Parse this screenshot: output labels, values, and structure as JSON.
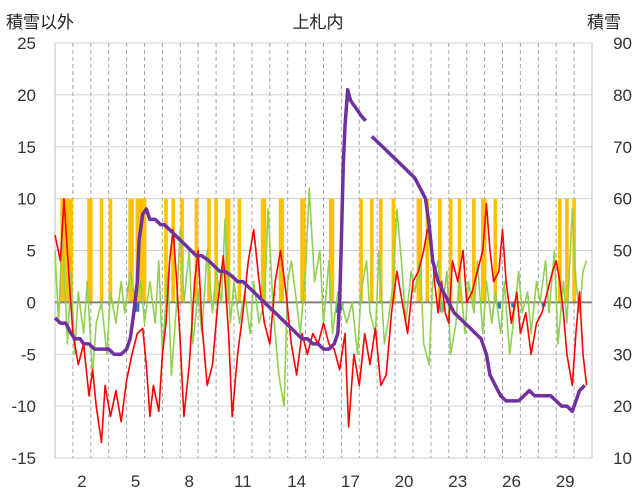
{
  "chart_data": {
    "type": "line",
    "title": "上札内",
    "y_left_label": "積雪以外",
    "y_right_label": "積雪",
    "y_left_ticks": [
      "25",
      "20",
      "15",
      "10",
      "5",
      "0",
      "-5",
      "-10",
      "-15"
    ],
    "y_right_ticks": [
      "90",
      "80",
      "70",
      "60",
      "50",
      "40",
      "30",
      "20",
      "10"
    ],
    "x_tick_labels": [
      "2",
      "5",
      "8",
      "11",
      "14",
      "17",
      "20",
      "23",
      "26",
      "29"
    ],
    "x_tick_days": [
      2,
      5,
      8,
      11,
      14,
      17,
      20,
      23,
      26,
      29
    ],
    "ylim_left": [
      -15,
      25
    ],
    "ylim_right": [
      10,
      90
    ],
    "xlim": [
      1,
      31
    ],
    "grid": {
      "x": "dashed-daily",
      "y": "solid"
    },
    "legend": "none",
    "colors": {
      "snowfall_bars": "#ffc000",
      "precip_bars": "#2e75b6",
      "temperature": "#ff0000",
      "series_green": "#92d050",
      "snow_depth": "#7030a0"
    },
    "snowfall_bars": [
      [
        1.3,
        1.6
      ],
      [
        1.6,
        2.0
      ],
      [
        2.8,
        3.1
      ],
      [
        3.5,
        3.7
      ],
      [
        4.0,
        4.2
      ],
      [
        5.1,
        5.4
      ],
      [
        5.5,
        6.1
      ],
      [
        7.1,
        7.3
      ],
      [
        7.5,
        7.7
      ],
      [
        8.0,
        8.2
      ],
      [
        8.8,
        9.0
      ],
      [
        9.5,
        9.7
      ],
      [
        9.9,
        10.1
      ],
      [
        10.5,
        10.8
      ],
      [
        11.2,
        11.4
      ],
      [
        12.5,
        12.8
      ],
      [
        13.5,
        13.8
      ],
      [
        14.7,
        15.0
      ],
      [
        16.3,
        16.6
      ],
      [
        18.0,
        18.2
      ],
      [
        18.6,
        18.8
      ],
      [
        19.1,
        19.3
      ],
      [
        19.8,
        20.0
      ],
      [
        21.2,
        21.5
      ],
      [
        21.7,
        21.9
      ],
      [
        22.4,
        22.6
      ],
      [
        23.0,
        23.2
      ],
      [
        23.5,
        23.7
      ],
      [
        24.3,
        24.5
      ],
      [
        24.8,
        25.1
      ],
      [
        25.5,
        25.7
      ],
      [
        29.1,
        29.3
      ],
      [
        29.5,
        29.7
      ],
      [
        29.9,
        30.1
      ]
    ],
    "precip_bars": [
      [
        5.6,
        -0.9
      ],
      [
        16.8,
        -1.0
      ],
      [
        17.0,
        -0.7
      ],
      [
        22.6,
        -0.9
      ],
      [
        25.8,
        -0.6
      ],
      [
        26.6,
        -0.5
      ],
      [
        28.3,
        -0.4
      ]
    ],
    "temperature": [
      [
        1.0,
        6.5
      ],
      [
        1.3,
        4.0
      ],
      [
        1.5,
        10.0
      ],
      [
        1.8,
        2.0
      ],
      [
        2.0,
        -3.0
      ],
      [
        2.3,
        -6.0
      ],
      [
        2.6,
        -4.0
      ],
      [
        2.9,
        -9.0
      ],
      [
        3.1,
        -6.5
      ],
      [
        3.3,
        -10.0
      ],
      [
        3.6,
        -13.5
      ],
      [
        3.8,
        -8.0
      ],
      [
        4.1,
        -11.0
      ],
      [
        4.4,
        -8.5
      ],
      [
        4.7,
        -11.5
      ],
      [
        5.0,
        -7.5
      ],
      [
        5.3,
        -5.0
      ],
      [
        5.6,
        -3.0
      ],
      [
        5.9,
        -2.5
      ],
      [
        6.1,
        -6.0
      ],
      [
        6.3,
        -11.0
      ],
      [
        6.5,
        -8.0
      ],
      [
        6.8,
        -10.5
      ],
      [
        7.0,
        -5.0
      ],
      [
        7.2,
        -2.0
      ],
      [
        7.4,
        4.0
      ],
      [
        7.6,
        7.0
      ],
      [
        7.8,
        2.0
      ],
      [
        8.0,
        -4.0
      ],
      [
        8.2,
        -11.0
      ],
      [
        8.5,
        -6.0
      ],
      [
        8.8,
        2.0
      ],
      [
        9.0,
        5.0
      ],
      [
        9.2,
        -2.0
      ],
      [
        9.5,
        -8.0
      ],
      [
        9.8,
        -6.0
      ],
      [
        10.1,
        0.0
      ],
      [
        10.4,
        4.5
      ],
      [
        10.7,
        -3.0
      ],
      [
        10.9,
        -11.0
      ],
      [
        11.2,
        -5.0
      ],
      [
        11.5,
        -1.0
      ],
      [
        11.8,
        4.0
      ],
      [
        12.1,
        7.0
      ],
      [
        12.4,
        2.0
      ],
      [
        12.7,
        -2.0
      ],
      [
        13.0,
        -4.0
      ],
      [
        13.3,
        2.0
      ],
      [
        13.6,
        5.0
      ],
      [
        13.9,
        1.0
      ],
      [
        14.2,
        -4.0
      ],
      [
        14.5,
        -7.0
      ],
      [
        14.8,
        -3.0
      ],
      [
        15.1,
        -5.0
      ],
      [
        15.4,
        -3.0
      ],
      [
        15.7,
        -4.0
      ],
      [
        16.0,
        -2.0
      ],
      [
        16.3,
        -4.0
      ],
      [
        16.6,
        -4.5
      ],
      [
        16.9,
        -6.5
      ],
      [
        17.2,
        -3.0
      ],
      [
        17.4,
        -12.0
      ],
      [
        17.7,
        -5.0
      ],
      [
        18.0,
        -8.0
      ],
      [
        18.3,
        -3.0
      ],
      [
        18.6,
        -6.0
      ],
      [
        18.9,
        -2.5
      ],
      [
        19.2,
        -8.0
      ],
      [
        19.5,
        -7.0
      ],
      [
        19.8,
        -1.0
      ],
      [
        20.1,
        3.0
      ],
      [
        20.4,
        0.0
      ],
      [
        20.7,
        -3.0
      ],
      [
        21.0,
        2.0
      ],
      [
        21.3,
        3.0
      ],
      [
        21.6,
        5.0
      ],
      [
        21.8,
        7.0
      ],
      [
        22.0,
        6.5
      ],
      [
        22.2,
        2.0
      ],
      [
        22.4,
        -1.0
      ],
      [
        22.6,
        2.0
      ],
      [
        22.8,
        -1.0
      ],
      [
        23.0,
        -2.0
      ],
      [
        23.2,
        4.0
      ],
      [
        23.5,
        2.0
      ],
      [
        23.8,
        5.0
      ],
      [
        24.0,
        0.0
      ],
      [
        24.3,
        1.0
      ],
      [
        24.6,
        3.0
      ],
      [
        24.9,
        5.0
      ],
      [
        25.1,
        9.5
      ],
      [
        25.3,
        5.0
      ],
      [
        25.5,
        2.0
      ],
      [
        25.8,
        3.0
      ],
      [
        26.0,
        7.0
      ],
      [
        26.2,
        2.0
      ],
      [
        26.5,
        -2.0
      ],
      [
        26.8,
        1.0
      ],
      [
        27.0,
        -3.0
      ],
      [
        27.3,
        -1.0
      ],
      [
        27.6,
        -5.0
      ],
      [
        27.9,
        -2.0
      ],
      [
        28.2,
        -1.0
      ],
      [
        28.5,
        1.0
      ],
      [
        28.8,
        3.0
      ],
      [
        29.0,
        4.0
      ],
      [
        29.2,
        2.0
      ],
      [
        29.4,
        -1.0
      ],
      [
        29.6,
        -5.0
      ],
      [
        29.9,
        -8.0
      ],
      [
        30.1,
        -3.0
      ],
      [
        30.3,
        1.0
      ],
      [
        30.5,
        -5.0
      ],
      [
        30.7,
        -8.0
      ]
    ],
    "series_green": [
      [
        1.0,
        5.0
      ],
      [
        1.2,
        -2.0
      ],
      [
        1.4,
        7.0
      ],
      [
        1.7,
        -4.0
      ],
      [
        1.9,
        3.0
      ],
      [
        2.1,
        -5.0
      ],
      [
        2.3,
        1.0
      ],
      [
        2.6,
        -3.0
      ],
      [
        2.8,
        2.0
      ],
      [
        3.1,
        -7.0
      ],
      [
        3.3,
        -2.0
      ],
      [
        3.6,
        0.0
      ],
      [
        3.9,
        -5.0
      ],
      [
        4.1,
        1.0
      ],
      [
        4.4,
        -2.0
      ],
      [
        4.7,
        2.0
      ],
      [
        4.9,
        -1.0
      ],
      [
        5.2,
        3.0
      ],
      [
        5.5,
        0.0
      ],
      [
        5.8,
        2.0
      ],
      [
        6.0,
        -2.0
      ],
      [
        6.3,
        2.0
      ],
      [
        6.6,
        -2.0
      ],
      [
        6.8,
        4.0
      ],
      [
        7.0,
        -5.0
      ],
      [
        7.3,
        3.0
      ],
      [
        7.5,
        -7.0
      ],
      [
        7.8,
        0.0
      ],
      [
        8.0,
        7.0
      ],
      [
        8.2,
        0.0
      ],
      [
        8.5,
        5.0
      ],
      [
        8.7,
        -4.0
      ],
      [
        9.0,
        1.0
      ],
      [
        9.2,
        -3.0
      ],
      [
        9.5,
        5.0
      ],
      [
        9.8,
        -1.0
      ],
      [
        10.0,
        3.0
      ],
      [
        10.3,
        0.0
      ],
      [
        10.5,
        8.0
      ],
      [
        10.8,
        -2.0
      ],
      [
        11.0,
        2.0
      ],
      [
        11.3,
        -2.0
      ],
      [
        11.6,
        1.0
      ],
      [
        11.9,
        -3.0
      ],
      [
        12.1,
        2.0
      ],
      [
        12.4,
        -2.0
      ],
      [
        12.7,
        0.0
      ],
      [
        12.9,
        9.0
      ],
      [
        13.2,
        -1.0
      ],
      [
        13.5,
        -7.0
      ],
      [
        13.8,
        -10.0
      ],
      [
        14.0,
        2.0
      ],
      [
        14.2,
        4.0
      ],
      [
        14.5,
        0.0
      ],
      [
        14.7,
        -3.0
      ],
      [
        15.0,
        3.0
      ],
      [
        15.2,
        11.0
      ],
      [
        15.5,
        2.0
      ],
      [
        15.8,
        5.0
      ],
      [
        16.0,
        -2.0
      ],
      [
        16.3,
        4.0
      ],
      [
        16.5,
        -3.0
      ],
      [
        16.8,
        1.0
      ],
      [
        17.0,
        0.0
      ],
      [
        17.3,
        -2.0
      ],
      [
        17.6,
        0.0
      ],
      [
        17.9,
        -5.0
      ],
      [
        18.1,
        1.0
      ],
      [
        18.4,
        4.0
      ],
      [
        18.6,
        -1.0
      ],
      [
        18.9,
        -3.0
      ],
      [
        19.1,
        5.0
      ],
      [
        19.4,
        -4.0
      ],
      [
        19.6,
        -2.0
      ],
      [
        19.9,
        2.0
      ],
      [
        20.1,
        9.0
      ],
      [
        20.4,
        3.0
      ],
      [
        20.6,
        -2.0
      ],
      [
        20.9,
        3.0
      ],
      [
        21.1,
        1.0
      ],
      [
        21.4,
        4.0
      ],
      [
        21.6,
        -4.0
      ],
      [
        21.9,
        -6.0
      ],
      [
        22.1,
        2.0
      ],
      [
        22.4,
        4.0
      ],
      [
        22.6,
        -1.0
      ],
      [
        22.9,
        3.0
      ],
      [
        23.1,
        -5.0
      ],
      [
        23.4,
        -2.0
      ],
      [
        23.6,
        3.0
      ],
      [
        23.9,
        -3.0
      ],
      [
        24.1,
        2.0
      ],
      [
        24.4,
        -1.0
      ],
      [
        24.6,
        4.0
      ],
      [
        24.9,
        -3.0
      ],
      [
        25.1,
        2.0
      ],
      [
        25.4,
        -2.0
      ],
      [
        25.6,
        1.0
      ],
      [
        25.9,
        -3.0
      ],
      [
        26.1,
        2.0
      ],
      [
        26.4,
        -5.0
      ],
      [
        26.6,
        -2.0
      ],
      [
        26.9,
        3.0
      ],
      [
        27.1,
        -1.0
      ],
      [
        27.4,
        1.0
      ],
      [
        27.6,
        -3.0
      ],
      [
        27.9,
        2.0
      ],
      [
        28.1,
        0.0
      ],
      [
        28.4,
        4.0
      ],
      [
        28.6,
        -1.0
      ],
      [
        28.9,
        5.0
      ],
      [
        29.1,
        -4.0
      ],
      [
        29.4,
        2.0
      ],
      [
        29.6,
        -2.0
      ],
      [
        29.9,
        9.0
      ],
      [
        30.1,
        2.0
      ],
      [
        30.3,
        -1.0
      ],
      [
        30.5,
        3.0
      ],
      [
        30.7,
        4.0
      ]
    ],
    "snow_depth": [
      [
        1.0,
        37
      ],
      [
        1.3,
        36
      ],
      [
        1.6,
        36
      ],
      [
        1.9,
        34
      ],
      [
        2.1,
        33
      ],
      [
        2.4,
        33
      ],
      [
        2.6,
        32
      ],
      [
        2.9,
        32
      ],
      [
        3.2,
        31
      ],
      [
        3.6,
        31
      ],
      [
        4.0,
        31
      ],
      [
        4.3,
        30
      ],
      [
        4.7,
        30
      ],
      [
        5.0,
        31
      ],
      [
        5.2,
        33
      ],
      [
        5.4,
        38
      ],
      [
        5.6,
        44
      ],
      [
        5.7,
        52
      ],
      [
        5.9,
        57
      ],
      [
        6.1,
        58
      ],
      [
        6.3,
        56
      ],
      [
        6.6,
        56
      ],
      [
        6.9,
        55
      ],
      [
        7.1,
        55
      ],
      [
        7.4,
        54
      ],
      [
        7.7,
        53
      ],
      [
        8.0,
        52
      ],
      [
        8.3,
        51
      ],
      [
        8.6,
        50
      ],
      [
        8.9,
        49
      ],
      [
        9.2,
        49
      ],
      [
        9.6,
        48
      ],
      [
        9.9,
        47
      ],
      [
        10.2,
        46
      ],
      [
        10.5,
        46
      ],
      [
        10.9,
        45
      ],
      [
        11.2,
        44
      ],
      [
        11.5,
        44
      ],
      [
        11.8,
        43
      ],
      [
        12.1,
        42
      ],
      [
        12.4,
        41
      ],
      [
        12.7,
        40
      ],
      [
        13.0,
        39
      ],
      [
        13.3,
        38
      ],
      [
        13.6,
        37
      ],
      [
        13.9,
        36
      ],
      [
        14.2,
        35
      ],
      [
        14.5,
        34
      ],
      [
        14.8,
        33
      ],
      [
        15.1,
        33
      ],
      [
        15.4,
        32
      ],
      [
        15.7,
        32
      ],
      [
        16.0,
        31
      ],
      [
        16.3,
        31
      ],
      [
        16.6,
        32
      ],
      [
        16.8,
        34
      ],
      [
        16.9,
        40
      ],
      [
        17.0,
        52
      ],
      [
        17.1,
        66
      ],
      [
        17.2,
        74
      ],
      [
        17.35,
        81
      ],
      [
        17.5,
        79
      ],
      [
        17.7,
        78
      ],
      [
        17.9,
        77
      ],
      [
        18.1,
        76
      ],
      [
        18.35,
        75
      ],
      null,
      [
        18.7,
        72
      ],
      [
        19.0,
        71
      ],
      [
        19.3,
        70
      ],
      [
        19.6,
        69
      ],
      [
        19.9,
        68
      ],
      [
        20.2,
        67
      ],
      [
        20.5,
        66
      ],
      [
        20.8,
        65
      ],
      [
        21.1,
        64
      ],
      [
        21.4,
        62
      ],
      [
        21.7,
        60
      ],
      [
        21.9,
        55
      ],
      [
        22.1,
        48
      ],
      [
        22.4,
        44
      ],
      [
        22.7,
        42
      ],
      [
        23.0,
        40
      ],
      [
        23.3,
        38
      ],
      [
        23.6,
        37
      ],
      [
        23.9,
        36
      ],
      [
        24.2,
        35
      ],
      [
        24.5,
        34
      ],
      [
        24.8,
        33
      ],
      [
        25.1,
        30
      ],
      [
        25.3,
        26
      ],
      [
        25.6,
        24
      ],
      [
        25.9,
        22
      ],
      [
        26.2,
        21
      ],
      [
        26.5,
        21
      ],
      [
        26.9,
        21
      ],
      [
        27.2,
        22
      ],
      [
        27.5,
        23
      ],
      [
        27.8,
        22
      ],
      [
        28.1,
        22
      ],
      [
        28.4,
        22
      ],
      [
        28.7,
        22
      ],
      [
        29.0,
        21
      ],
      [
        29.3,
        20
      ],
      [
        29.6,
        20
      ],
      [
        29.9,
        19
      ],
      [
        30.1,
        21
      ],
      [
        30.3,
        23
      ],
      [
        30.6,
        24
      ]
    ]
  }
}
